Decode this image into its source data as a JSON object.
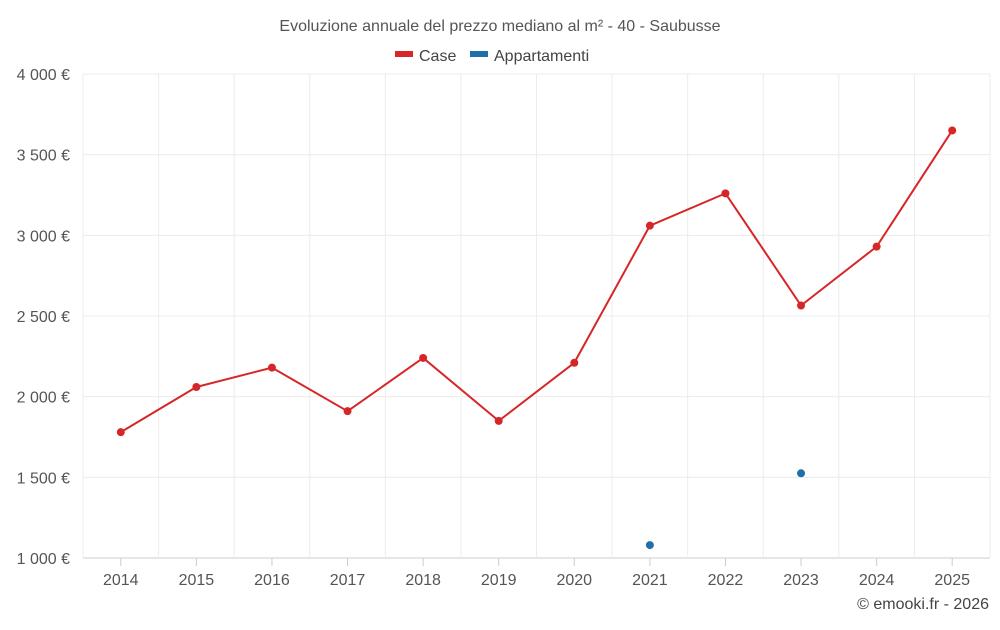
{
  "chart_data": {
    "type": "line",
    "title": "Evoluzione annuale del prezzo mediano al m² - 40 - Saubusse",
    "categories": [
      "2014",
      "2015",
      "2016",
      "2017",
      "2018",
      "2019",
      "2020",
      "2021",
      "2022",
      "2023",
      "2024",
      "2025"
    ],
    "series": [
      {
        "name": "Case",
        "color": "#d62728",
        "values": [
          1780,
          2060,
          2180,
          1910,
          2240,
          1850,
          2210,
          3060,
          3260,
          2565,
          2930,
          3650
        ]
      },
      {
        "name": "Appartamenti",
        "color": "#1f6fa8",
        "values": [
          null,
          null,
          null,
          null,
          null,
          null,
          null,
          1080,
          null,
          1525,
          null,
          null
        ]
      }
    ],
    "yticks": [
      "1 000 €",
      "1 500 €",
      "2 000 €",
      "2 500 €",
      "3 000 €",
      "3 500 €",
      "4 000 €"
    ],
    "ytick_values": [
      1000,
      1500,
      2000,
      2500,
      3000,
      3500,
      4000
    ],
    "ylim": [
      1000,
      4000
    ],
    "grid": true,
    "legend_position": "top-center"
  },
  "credit": "© emooki.fr - 2026"
}
